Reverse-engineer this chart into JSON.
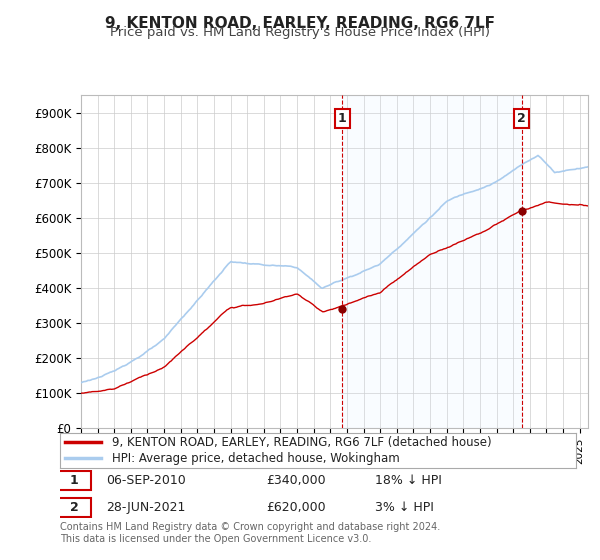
{
  "title": "9, KENTON ROAD, EARLEY, READING, RG6 7LF",
  "subtitle": "Price paid vs. HM Land Registry's House Price Index (HPI)",
  "ylim": [
    0,
    950000
  ],
  "yticks": [
    0,
    100000,
    200000,
    300000,
    400000,
    500000,
    600000,
    700000,
    800000,
    900000
  ],
  "ytick_labels": [
    "£0",
    "£100K",
    "£200K",
    "£300K",
    "£400K",
    "£500K",
    "£600K",
    "£700K",
    "£800K",
    "£900K"
  ],
  "background_color": "#ffffff",
  "plot_bg_color": "#ffffff",
  "grid_color": "#cccccc",
  "hpi_line_color": "#5599cc",
  "hpi_line_color_light": "#aaccee",
  "shade_color": "#ddeeff",
  "price_line_color": "#cc0000",
  "dashed_line_color": "#cc0000",
  "t1_year": 2010.708,
  "t1_price": 340000,
  "t2_year": 2021.5,
  "t2_price": 620000,
  "legend_property_label": "9, KENTON ROAD, EARLEY, READING, RG6 7LF (detached house)",
  "legend_hpi_label": "HPI: Average price, detached house, Wokingham",
  "table_row1": [
    "1",
    "06-SEP-2010",
    "£340,000",
    "18% ↓ HPI"
  ],
  "table_row2": [
    "2",
    "28-JUN-2021",
    "£620,000",
    "3% ↓ HPI"
  ],
  "footnote": "Contains HM Land Registry data © Crown copyright and database right 2024.\nThis data is licensed under the Open Government Licence v3.0.",
  "title_fontsize": 11,
  "subtitle_fontsize": 9.5,
  "tick_fontsize": 8.5,
  "legend_fontsize": 8.5
}
